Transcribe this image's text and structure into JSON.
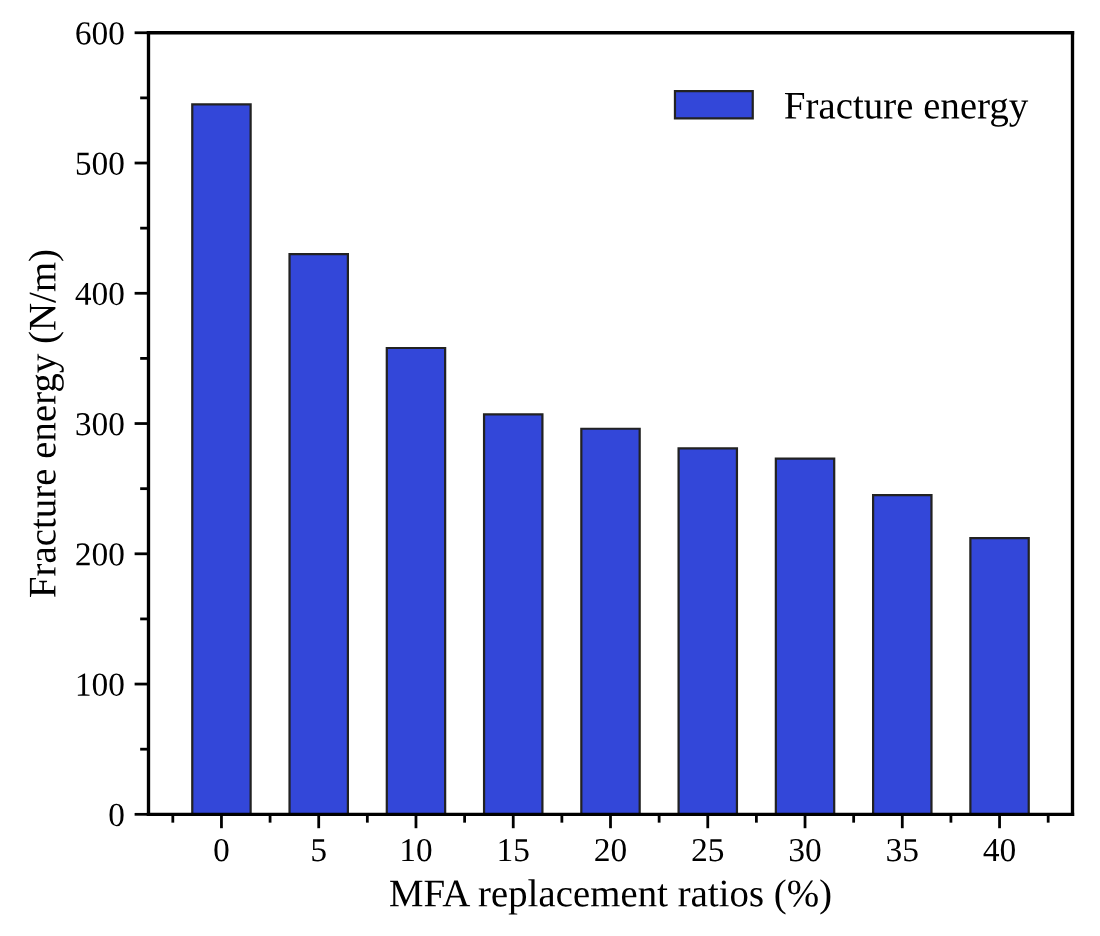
{
  "chart_data": {
    "type": "bar",
    "xlabel": "MFA replacement ratios (%)",
    "ylabel": "Fracture energy (N/m)",
    "categories": [
      "0",
      "5",
      "10",
      "15",
      "20",
      "25",
      "30",
      "35",
      "40"
    ],
    "series": [
      {
        "name": "Fracture energy",
        "color": "#3347d9",
        "values": [
          545,
          430,
          358,
          307,
          296,
          281,
          273,
          245,
          212
        ]
      }
    ],
    "ylim": [
      0,
      600
    ],
    "yticks": [
      0,
      100,
      200,
      300,
      400,
      500,
      600
    ],
    "grid": false,
    "legend": "top right"
  }
}
